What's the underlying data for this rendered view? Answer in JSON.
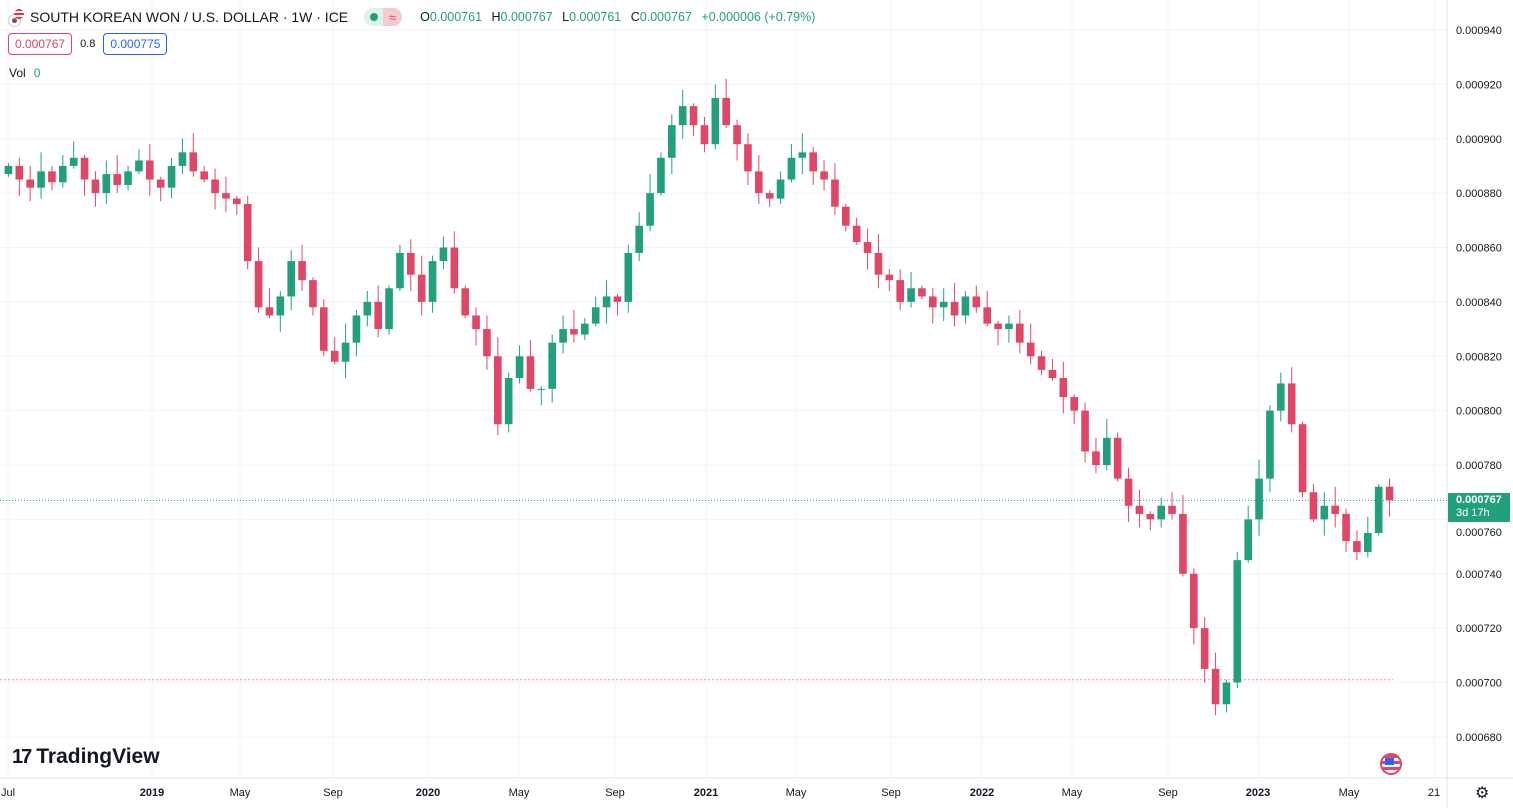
{
  "header": {
    "title": "SOUTH KOREAN WON / U.S. DOLLAR · 1W · ICE",
    "ohlc": {
      "o_label": "O",
      "o": "0.000761",
      "h_label": "H",
      "h": "0.000767",
      "l_label": "L",
      "l": "0.000761",
      "c_label": "C",
      "c": "0.000767",
      "change": "+0.000006 (+0.79%)"
    },
    "bid": "0.000767",
    "spread": "0.8",
    "ask": "0.000775",
    "vol_label": "Vol",
    "vol_value": "0"
  },
  "last_price": {
    "value": "0.000767",
    "countdown": "3d 17h"
  },
  "branding": {
    "logo": "TradingView"
  },
  "colors": {
    "up": "#22a07d",
    "down": "#e04766",
    "grid": "#f0f3fa"
  },
  "chart_data": {
    "type": "candlestick",
    "title": "SOUTH KOREAN WON / U.S. DOLLAR · 1W · ICE",
    "ylim": [
      0.000668,
      0.000944
    ],
    "y_ticks": [
      "0.000940",
      "0.000920",
      "0.000900",
      "0.000880",
      "0.000860",
      "0.000840",
      "0.000820",
      "0.000800",
      "0.000780",
      "0.000760",
      "0.000740",
      "0.000720",
      "0.000700",
      "0.000680"
    ],
    "x_ticks": [
      "Jul",
      "2019",
      "May",
      "Sep",
      "2020",
      "May",
      "Sep",
      "2021",
      "May",
      "Sep",
      "2022",
      "May",
      "Sep",
      "2023",
      "May",
      "21"
    ],
    "x_range": [
      "2018-06",
      "2023-07"
    ],
    "reference_levels": {
      "last": 0.000767,
      "low_line": 0.000701
    },
    "closes": [
      0.00089,
      0.000885,
      0.000882,
      0.000888,
      0.000884,
      0.00089,
      0.000893,
      0.000885,
      0.00088,
      0.000887,
      0.000883,
      0.000888,
      0.000892,
      0.000885,
      0.000882,
      0.00089,
      0.000895,
      0.000888,
      0.000885,
      0.00088,
      0.000878,
      0.000876,
      0.000855,
      0.000838,
      0.000835,
      0.000842,
      0.000855,
      0.000848,
      0.000838,
      0.000822,
      0.000818,
      0.000825,
      0.000835,
      0.00084,
      0.00083,
      0.000845,
      0.000858,
      0.00085,
      0.00084,
      0.000855,
      0.00086,
      0.000845,
      0.000835,
      0.00083,
      0.00082,
      0.000795,
      0.000812,
      0.00082,
      0.000808,
      0.000808,
      0.000825,
      0.00083,
      0.000828,
      0.000832,
      0.000838,
      0.000842,
      0.00084,
      0.000858,
      0.000868,
      0.00088,
      0.000893,
      0.000905,
      0.000912,
      0.000905,
      0.000898,
      0.000915,
      0.000905,
      0.000898,
      0.000888,
      0.00088,
      0.000878,
      0.000885,
      0.000893,
      0.000895,
      0.000888,
      0.000885,
      0.000875,
      0.000868,
      0.000862,
      0.000858,
      0.00085,
      0.000848,
      0.00084,
      0.000845,
      0.000842,
      0.000838,
      0.00084,
      0.000835,
      0.000842,
      0.000838,
      0.000832,
      0.00083,
      0.000832,
      0.000825,
      0.00082,
      0.000815,
      0.000812,
      0.000805,
      0.0008,
      0.000785,
      0.00078,
      0.00079,
      0.000775,
      0.000765,
      0.000762,
      0.00076,
      0.000765,
      0.000762,
      0.00074,
      0.00072,
      0.000705,
      0.000692,
      0.0007,
      0.000745,
      0.00076,
      0.000775,
      0.0008,
      0.00081,
      0.000795,
      0.00077,
      0.00076,
      0.000765,
      0.000762,
      0.000752,
      0.000748,
      0.000755,
      0.000772,
      0.000767
    ]
  }
}
